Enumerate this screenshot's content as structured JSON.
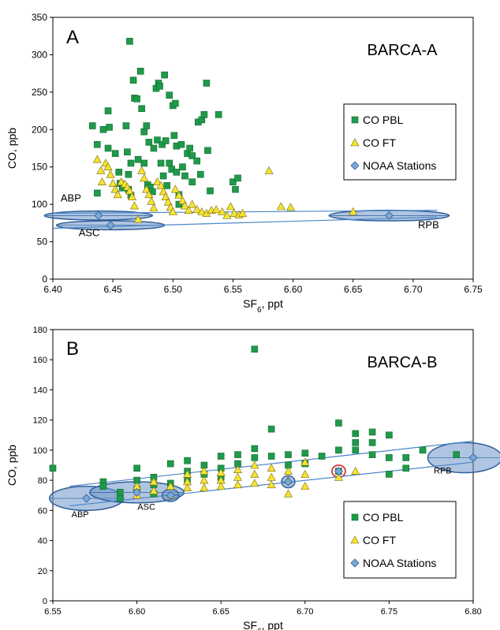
{
  "chart_data": [
    {
      "type": "scatter",
      "panel_letter": "A",
      "title": "BARCA-A",
      "xlabel": "SF",
      "xlabel_sub": "6",
      "xlabel_unit": ", ppt",
      "ylabel": "CO, ppb",
      "xlim": [
        6.4,
        6.75
      ],
      "ylim": [
        0,
        350
      ],
      "xticks": [
        "6.40",
        "6.45",
        "6.50",
        "6.55",
        "6.60",
        "6.65",
        "6.70",
        "6.75"
      ],
      "yticks": [
        "0",
        "50",
        "100",
        "150",
        "200",
        "250",
        "300",
        "350"
      ],
      "legend_position": "right",
      "legend": [
        "CO PBL",
        "CO FT",
        "NOAA Stations"
      ],
      "series": [
        {
          "name": "CO PBL",
          "marker": "square",
          "color": "#1f9a4a",
          "points": [
            [
              6.433,
              205
            ],
            [
              6.437,
              180
            ],
            [
              6.437,
              115
            ],
            [
              6.442,
              200
            ],
            [
              6.446,
              225
            ],
            [
              6.447,
              203
            ],
            [
              6.446,
              175
            ],
            [
              6.452,
              168
            ],
            [
              6.455,
              143
            ],
            [
              6.456,
              128
            ],
            [
              6.458,
              122
            ],
            [
              6.461,
              205
            ],
            [
              6.462,
              170
            ],
            [
              6.463,
              140
            ],
            [
              6.465,
              155
            ],
            [
              6.463,
              120
            ],
            [
              6.465,
              112
            ],
            [
              6.464,
              318
            ],
            [
              6.467,
              266
            ],
            [
              6.468,
              242
            ],
            [
              6.47,
              241
            ],
            [
              6.471,
              160
            ],
            [
              6.473,
              278
            ],
            [
              6.474,
              228
            ],
            [
              6.476,
              197
            ],
            [
              6.476,
              155
            ],
            [
              6.478,
              205
            ],
            [
              6.479,
              126
            ],
            [
              6.48,
              183
            ],
            [
              6.481,
              123
            ],
            [
              6.483,
              117
            ],
            [
              6.484,
              175
            ],
            [
              6.486,
              255
            ],
            [
              6.487,
              186
            ],
            [
              6.488,
              262
            ],
            [
              6.489,
              258
            ],
            [
              6.49,
              155
            ],
            [
              6.491,
              180
            ],
            [
              6.492,
              138
            ],
            [
              6.493,
              273
            ],
            [
              6.494,
              185
            ],
            [
              6.495,
              125
            ],
            [
              6.497,
              246
            ],
            [
              6.497,
              155
            ],
            [
              6.499,
              147
            ],
            [
              6.5,
              232
            ],
            [
              6.501,
              192
            ],
            [
              6.502,
              235
            ],
            [
              6.503,
              178
            ],
            [
              6.503,
              143
            ],
            [
              6.505,
              113
            ],
            [
              6.505,
              100
            ],
            [
              6.507,
              180
            ],
            [
              6.508,
              150
            ],
            [
              6.51,
              138
            ],
            [
              6.512,
              168
            ],
            [
              6.514,
              175
            ],
            [
              6.516,
              165
            ],
            [
              6.516,
              130
            ],
            [
              6.52,
              158
            ],
            [
              6.521,
              210
            ],
            [
              6.523,
              140
            ],
            [
              6.524,
              213
            ],
            [
              6.526,
              220
            ],
            [
              6.528,
              262
            ],
            [
              6.529,
              172
            ],
            [
              6.531,
              118
            ],
            [
              6.538,
              220
            ],
            [
              6.55,
              130
            ],
            [
              6.552,
              120
            ],
            [
              6.554,
              135
            ]
          ]
        },
        {
          "name": "CO FT",
          "marker": "triangle",
          "color": "#f5e432",
          "points": [
            [
              6.437,
              160
            ],
            [
              6.44,
              145
            ],
            [
              6.441,
              130
            ],
            [
              6.444,
              155
            ],
            [
              6.446,
              150
            ],
            [
              6.448,
              140
            ],
            [
              6.45,
              128
            ],
            [
              6.452,
              120
            ],
            [
              6.454,
              113
            ],
            [
              6.457,
              130
            ],
            [
              6.46,
              127
            ],
            [
              6.462,
              123
            ],
            [
              6.464,
              118
            ],
            [
              6.466,
              110
            ],
            [
              6.468,
              98
            ],
            [
              6.471,
              80
            ],
            [
              6.474,
              145
            ],
            [
              6.476,
              135
            ],
            [
              6.478,
              120
            ],
            [
              6.48,
              113
            ],
            [
              6.482,
              104
            ],
            [
              6.484,
              95
            ],
            [
              6.487,
              130
            ],
            [
              6.49,
              125
            ],
            [
              6.492,
              117
            ],
            [
              6.494,
              110
            ],
            [
              6.496,
              103
            ],
            [
              6.498,
              96
            ],
            [
              6.5,
              90
            ],
            [
              6.502,
              120
            ],
            [
              6.505,
              112
            ],
            [
              6.508,
              105
            ],
            [
              6.51,
              98
            ],
            [
              6.513,
              92
            ],
            [
              6.516,
              100
            ],
            [
              6.52,
              93
            ],
            [
              6.524,
              90
            ],
            [
              6.528,
              88
            ],
            [
              6.532,
              92
            ],
            [
              6.536,
              93
            ],
            [
              6.541,
              90
            ],
            [
              6.545,
              85
            ],
            [
              6.548,
              97
            ],
            [
              6.551,
              88
            ],
            [
              6.555,
              86
            ],
            [
              6.558,
              88
            ],
            [
              6.58,
              145
            ],
            [
              6.59,
              97
            ],
            [
              6.598,
              96
            ],
            [
              6.65,
              90
            ]
          ]
        },
        {
          "name": "NOAA Stations",
          "marker": "diamond",
          "color": "#7ba7d7",
          "points": [
            [
              6.438,
              85
            ],
            [
              6.448,
              72
            ],
            [
              6.68,
              85
            ]
          ]
        }
      ],
      "ellipses": [
        {
          "label": "ABP",
          "cx": 6.438,
          "cy": 85,
          "rx": 0.045,
          "ry": 6
        },
        {
          "label": "ASC",
          "cx": 6.448,
          "cy": 72,
          "rx": 0.045,
          "ry": 6
        },
        {
          "label": "RPB",
          "cx": 6.68,
          "cy": 85,
          "rx": 0.05,
          "ry": 7
        }
      ],
      "trend_lines": [
        [
          [
            6.4,
            88
          ],
          [
            6.72,
            92
          ]
        ],
        [
          [
            6.4,
            68
          ],
          [
            6.72,
            83
          ]
        ]
      ]
    },
    {
      "type": "scatter",
      "panel_letter": "B",
      "title": "BARCA-B",
      "xlabel": "SF",
      "xlabel_sub": "6",
      "xlabel_unit": ", ppt",
      "ylabel": "CO, ppb",
      "xlim": [
        6.55,
        6.8
      ],
      "ylim": [
        0,
        180
      ],
      "xticks": [
        "6.55",
        "6.60",
        "6.65",
        "6.70",
        "6.75",
        "6.80"
      ],
      "yticks": [
        "0",
        "20",
        "40",
        "60",
        "80",
        "100",
        "120",
        "140",
        "160",
        "180"
      ],
      "legend_position": "bottom-right",
      "legend": [
        "CO PBL",
        "CO FT",
        "NOAA Stations"
      ],
      "series": [
        {
          "name": "CO PBL",
          "marker": "square",
          "color": "#1f9a4a",
          "points": [
            [
              6.55,
              88
            ],
            [
              6.58,
              79
            ],
            [
              6.58,
              76
            ],
            [
              6.59,
              72
            ],
            [
              6.59,
              68
            ],
            [
              6.6,
              88
            ],
            [
              6.6,
              80
            ],
            [
              6.6,
              74
            ],
            [
              6.61,
              82
            ],
            [
              6.61,
              77
            ],
            [
              6.61,
              71
            ],
            [
              6.62,
              91
            ],
            [
              6.62,
              78
            ],
            [
              6.63,
              93
            ],
            [
              6.63,
              86
            ],
            [
              6.63,
              80
            ],
            [
              6.64,
              90
            ],
            [
              6.64,
              84
            ],
            [
              6.65,
              96
            ],
            [
              6.65,
              88
            ],
            [
              6.65,
              82
            ],
            [
              6.66,
              97
            ],
            [
              6.66,
              91
            ],
            [
              6.67,
              167
            ],
            [
              6.67,
              101
            ],
            [
              6.67,
              95
            ],
            [
              6.68,
              114
            ],
            [
              6.68,
              96
            ],
            [
              6.69,
              97
            ],
            [
              6.69,
              90
            ],
            [
              6.7,
              98
            ],
            [
              6.7,
              91
            ],
            [
              6.71,
              96
            ],
            [
              6.72,
              118
            ],
            [
              6.72,
              100
            ],
            [
              6.72,
              86
            ],
            [
              6.73,
              111
            ],
            [
              6.73,
              105
            ],
            [
              6.73,
              100
            ],
            [
              6.74,
              112
            ],
            [
              6.74,
              105
            ],
            [
              6.74,
              97
            ],
            [
              6.75,
              110
            ],
            [
              6.75,
              95
            ],
            [
              6.75,
              84
            ],
            [
              6.76,
              95
            ],
            [
              6.76,
              88
            ],
            [
              6.77,
              100
            ],
            [
              6.79,
              97
            ]
          ]
        },
        {
          "name": "CO FT",
          "marker": "triangle",
          "color": "#f5e432",
          "points": [
            [
              6.6,
              76
            ],
            [
              6.6,
              70
            ],
            [
              6.61,
              79
            ],
            [
              6.61,
              73
            ],
            [
              6.62,
              76
            ],
            [
              6.62,
              70
            ],
            [
              6.63,
              84
            ],
            [
              6.63,
              79
            ],
            [
              6.63,
              75
            ],
            [
              6.64,
              86
            ],
            [
              6.64,
              80
            ],
            [
              6.64,
              75
            ],
            [
              6.65,
              85
            ],
            [
              6.65,
              80
            ],
            [
              6.65,
              76
            ],
            [
              6.66,
              87
            ],
            [
              6.66,
              82
            ],
            [
              6.66,
              77
            ],
            [
              6.67,
              90
            ],
            [
              6.67,
              84
            ],
            [
              6.67,
              78
            ],
            [
              6.68,
              88
            ],
            [
              6.68,
              82
            ],
            [
              6.68,
              77
            ],
            [
              6.69,
              86
            ],
            [
              6.69,
              80
            ],
            [
              6.69,
              71
            ],
            [
              6.7,
              92
            ],
            [
              6.7,
              84
            ],
            [
              6.7,
              76
            ],
            [
              6.72,
              82
            ],
            [
              6.73,
              86
            ]
          ]
        },
        {
          "name": "NOAA Stations",
          "marker": "diamond",
          "color": "#7ba7d7",
          "points": [
            [
              6.57,
              68
            ],
            [
              6.6,
              72
            ],
            [
              6.62,
              70
            ],
            [
              6.69,
              79
            ],
            [
              6.72,
              86
            ],
            [
              6.8,
              95
            ]
          ]
        }
      ],
      "ellipses": [
        {
          "label": "ABP",
          "cx": 6.57,
          "cy": 68,
          "rx": 0.022,
          "ry": 8,
          "color": "#2f5f9a"
        },
        {
          "label": "ASC",
          "cx": 6.6,
          "cy": 72,
          "rx": 0.028,
          "ry": 7,
          "color": "#2f5f9a"
        },
        {
          "label": "",
          "cx": 6.62,
          "cy": 70,
          "rx": 0.005,
          "ry": 4,
          "color": "#2f5f9a"
        },
        {
          "label": "",
          "cx": 6.69,
          "cy": 79,
          "rx": 0.004,
          "ry": 4,
          "color": "#2f5f9a"
        },
        {
          "label": "",
          "cx": 6.72,
          "cy": 86,
          "rx": 0.004,
          "ry": 4,
          "color": "#e03030",
          "outline_only": true
        },
        {
          "label": "RPB",
          "cx": 6.795,
          "cy": 95,
          "rx": 0.022,
          "ry": 10,
          "color": "#2f5f9a"
        }
      ],
      "trend_lines": [
        [
          [
            6.56,
            76
          ],
          [
            6.8,
            106
          ]
        ],
        [
          [
            6.56,
            63
          ],
          [
            6.8,
            92
          ]
        ]
      ]
    }
  ]
}
